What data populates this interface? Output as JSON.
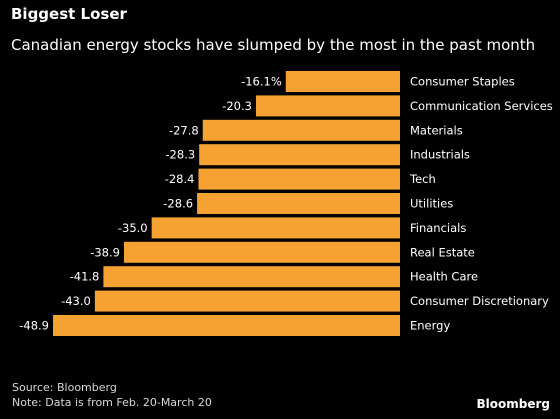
{
  "header": {
    "title": "Biggest Loser",
    "subtitle": "Canadian energy stocks have slumped by the most in the past month"
  },
  "footer": {
    "source": "Source: Bloomberg",
    "note": "Note: Data is from Feb. 20-March 20",
    "logo": "Bloomberg"
  },
  "colors": {
    "bar": "#f5a232",
    "background": "#000000",
    "text": "#ffffff"
  },
  "chart_data": {
    "type": "bar",
    "orientation": "horizontal",
    "title": "Biggest Loser",
    "subtitle": "Canadian energy stocks have slumped by the most in the past month",
    "xlabel": "",
    "ylabel": "",
    "grid": false,
    "legend": "none",
    "xlim": [
      -48.9,
      0
    ],
    "categories": [
      "Consumer Staples",
      "Communication Services",
      "Materials",
      "Industrials",
      "Tech",
      "Utilities",
      "Financials",
      "Real Estate",
      "Health Care",
      "Consumer Discretionary",
      "Energy"
    ],
    "values": [
      -16.1,
      -20.3,
      -27.8,
      -28.3,
      -28.4,
      -28.6,
      -35.0,
      -38.9,
      -41.8,
      -43.0,
      -48.9
    ],
    "value_labels": [
      "-16.1%",
      "-20.3",
      "-27.8",
      "-28.3",
      "-28.4",
      "-28.6",
      "-35.0",
      "-38.9",
      "-41.8",
      "-43.0",
      "-48.9"
    ]
  }
}
